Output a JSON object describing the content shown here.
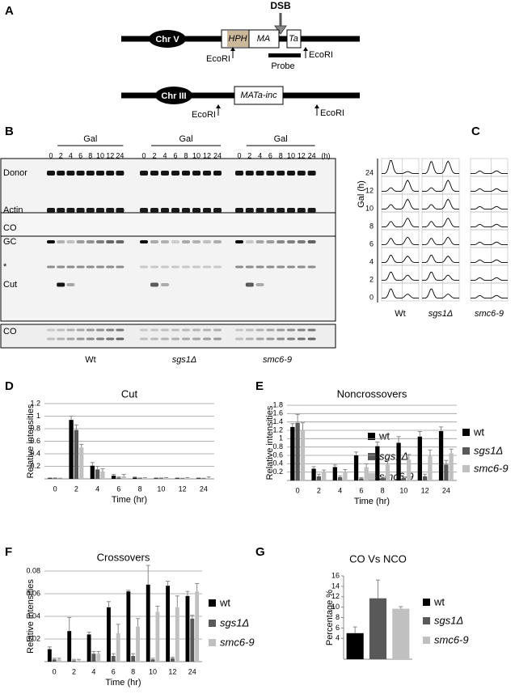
{
  "panel_labels": [
    "A",
    "B",
    "C",
    "D",
    "E",
    "F",
    "G"
  ],
  "panel_a": {
    "dsb": "DSB",
    "chr_v": "Chr V",
    "hph": "HPH",
    "ma": "MA",
    "ta": "Ta",
    "ecori": [
      "EcoRI",
      "EcoRI",
      "EcoRI",
      "EcoRI"
    ],
    "probe": "Probe",
    "chr_iii": "Chr III",
    "mat": "MATa-inc"
  },
  "panel_b": {
    "groups": [
      {
        "label": "Gal",
        "times": [
          "0",
          "2",
          "4",
          "6",
          "8",
          "10",
          "12",
          "24"
        ]
      },
      {
        "label": "Gal",
        "times": [
          "0",
          "2",
          "4",
          "6",
          "8",
          "10",
          "12",
          "24"
        ]
      },
      {
        "label": "Gal",
        "times": [
          "0",
          "2",
          "4",
          "6",
          "8",
          "10",
          "12",
          "24"
        ]
      }
    ],
    "unit": "(h)",
    "rows": [
      "Donor",
      "Actin",
      "CO",
      "GC",
      "*",
      "Cut",
      "CO"
    ],
    "strains": [
      "Wt",
      "sgs1Δ",
      "smc6-9"
    ]
  },
  "panel_c": {
    "times": [
      "24",
      "12",
      "10",
      "8",
      "6",
      "4",
      "2",
      "0"
    ],
    "y_label": "Gal (h)",
    "strains": [
      "Wt",
      "sgs1Δ",
      "smc6-9"
    ]
  },
  "chart_data": [
    {
      "type": "bar",
      "title": "Cut",
      "x_label": "Time (hr)",
      "y_label": "Relative intensities",
      "categories": [
        "0",
        "2",
        "4",
        "6",
        "8",
        "10",
        "12",
        "24"
      ],
      "series": [
        {
          "name": "wt",
          "color": "#000000",
          "values": [
            0.01,
            0.94,
            0.21,
            0.05,
            0.02,
            0.01,
            0.01,
            0.01
          ],
          "errors": [
            0.005,
            0.06,
            0.05,
            0.02,
            0.01,
            0.005,
            0.005,
            0.005
          ]
        },
        {
          "name": "sgs1Δ",
          "color": "#595959",
          "values": [
            0.01,
            0.78,
            0.15,
            0.02,
            0.01,
            0.01,
            0.005,
            0.005
          ],
          "errors": [
            0.005,
            0.08,
            0.05,
            0.01,
            0.005,
            0.005,
            0.005,
            0.005
          ]
        },
        {
          "name": "smc6-9",
          "color": "#c0c0c0",
          "values": [
            0.005,
            0.5,
            0.12,
            0.04,
            0.01,
            0.01,
            0.01,
            0.01
          ],
          "errors": [
            0.005,
            0.05,
            0.04,
            0.03,
            0.01,
            0.01,
            0.01,
            0.02
          ]
        }
      ],
      "ylim": [
        0,
        1.2
      ],
      "yticks": [
        0.2,
        0.4,
        0.6,
        0.8,
        1,
        1.2
      ],
      "grid": true,
      "legend": "right"
    },
    {
      "type": "bar",
      "title": "Noncrossovers",
      "x_label": "Time (hr)",
      "y_label": "Relative intensities",
      "categories": [
        "0",
        "2",
        "4",
        "6",
        "8",
        "10",
        "12",
        "24"
      ],
      "series": [
        {
          "name": "wt",
          "color": "#000000",
          "values": [
            1.28,
            0.28,
            0.32,
            0.6,
            0.82,
            0.9,
            1.05,
            1.18
          ],
          "errors": [
            0.08,
            0.05,
            0.05,
            0.08,
            0.1,
            0.15,
            0.12,
            0.1
          ]
        },
        {
          "name": "sgs1Δ",
          "color": "#595959",
          "values": [
            1.38,
            0.1,
            0.08,
            0.05,
            0.06,
            0.06,
            0.1,
            0.38
          ],
          "errors": [
            0.2,
            0.05,
            0.03,
            0.02,
            0.02,
            0.02,
            0.05,
            0.1
          ]
        },
        {
          "name": "smc6-9",
          "color": "#c0c0c0",
          "values": [
            1.2,
            0.2,
            0.2,
            0.32,
            0.38,
            0.5,
            0.58,
            0.65
          ],
          "errors": [
            0.18,
            0.05,
            0.06,
            0.08,
            0.1,
            0.12,
            0.15,
            0.1
          ]
        }
      ],
      "ylim": [
        0,
        1.8
      ],
      "yticks": [
        0.2,
        0.4,
        0.6,
        0.8,
        1,
        1.2,
        1.4,
        1.6,
        1.8
      ],
      "grid": true,
      "legend": "right"
    },
    {
      "type": "bar",
      "title": "Crossovers",
      "x_label": "Time (hr)",
      "y_label": "Relative intensities",
      "categories": [
        "0",
        "2",
        "4",
        "6",
        "8",
        "10",
        "12",
        "24"
      ],
      "series": [
        {
          "name": "wt",
          "color": "#000000",
          "values": [
            0.011,
            0.027,
            0.024,
            0.048,
            0.062,
            0.068,
            0.067,
            0.058
          ],
          "errors": [
            0.002,
            0.012,
            0.002,
            0.005,
            0.001,
            0.017,
            0.004,
            0.004
          ]
        },
        {
          "name": "sgs1Δ",
          "color": "#595959",
          "values": [
            0.002,
            0.001,
            0.007,
            0.005,
            0.005,
            0.002,
            0.003,
            0.038
          ],
          "errors": [
            0.001,
            0.001,
            0.002,
            0.002,
            0.002,
            0.001,
            0.001,
            0.003
          ]
        },
        {
          "name": "smc6-9",
          "color": "#c0c0c0",
          "values": [
            0.002,
            0.001,
            0.007,
            0.025,
            0.031,
            0.044,
            0.048,
            0.062
          ],
          "errors": [
            0.001,
            0.001,
            0.002,
            0.008,
            0.007,
            0.005,
            0.01,
            0.007
          ]
        }
      ],
      "ylim": [
        0,
        0.08
      ],
      "yticks": [
        0.02,
        0.04,
        0.06,
        0.08
      ],
      "grid": true,
      "legend": "right"
    },
    {
      "type": "bar",
      "title": "CO Vs NCO",
      "y_label": "Percentage %",
      "series": [
        {
          "name": "wt",
          "color": "#000000",
          "values": [
            5
          ],
          "errors": [
            1.2
          ]
        },
        {
          "name": "sgs1Δ",
          "color": "#595959",
          "values": [
            11.7
          ],
          "errors": [
            3.5
          ]
        },
        {
          "name": "smc6-9",
          "color": "#c0c0c0",
          "values": [
            9.7
          ],
          "errors": [
            0.4
          ]
        }
      ],
      "ylim": [
        0,
        16
      ],
      "yticks": [
        4,
        6,
        8,
        10,
        12,
        14,
        16
      ],
      "grid": false,
      "legend": "right"
    }
  ]
}
